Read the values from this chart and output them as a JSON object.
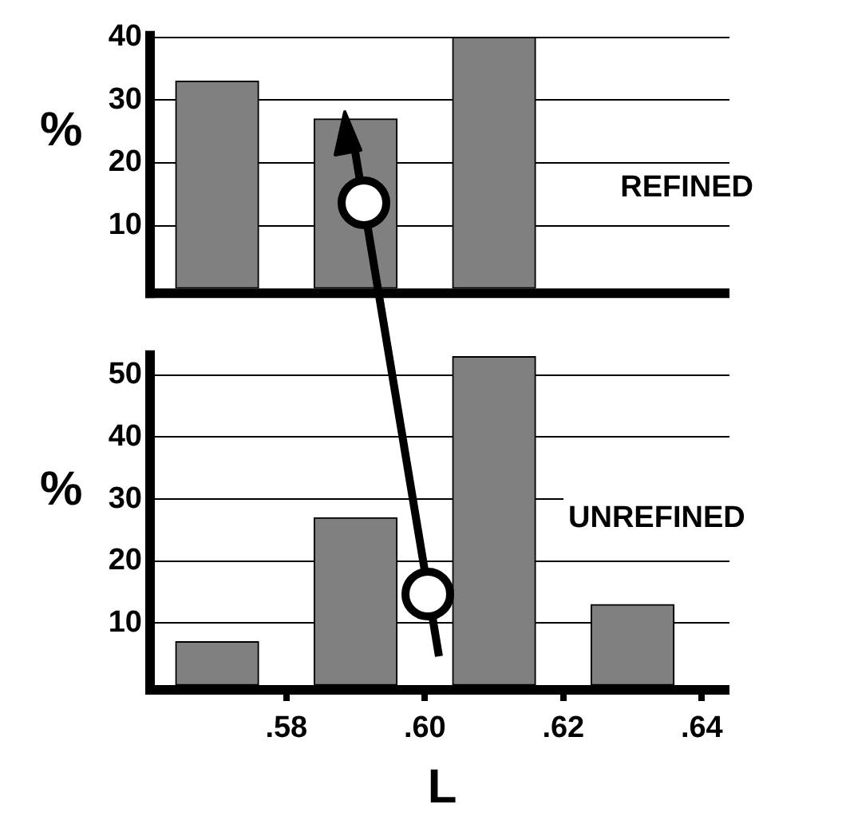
{
  "chart_data": [
    {
      "type": "bar",
      "x": [
        0.57,
        0.59,
        0.61
      ],
      "values": [
        33,
        27,
        40
      ],
      "color": "#808080",
      "xlim": [
        0.561,
        0.644
      ],
      "ylim": [
        0,
        41
      ],
      "yticks": [
        10,
        20,
        30,
        40
      ],
      "ylabel": "%",
      "annotations": [
        "REFINED"
      ],
      "grid": "y",
      "tick_labels": "y"
    },
    {
      "type": "bar",
      "x": [
        0.57,
        0.59,
        0.61,
        0.63
      ],
      "values": [
        7,
        27,
        53,
        13
      ],
      "color": "#808080",
      "xlim": [
        0.561,
        0.644
      ],
      "xticks": [
        {
          "value": 0.58,
          "label": ".58"
        },
        {
          "value": 0.6,
          "label": ".60"
        },
        {
          "value": 0.62,
          "label": ".62"
        },
        {
          "value": 0.64,
          "label": ".64"
        }
      ],
      "ylim": [
        0,
        54
      ],
      "yticks": [
        10,
        20,
        30,
        40,
        50
      ],
      "ylabel": "%",
      "xlabel": "L",
      "annotations": [
        "UNREFINED"
      ],
      "grid": "y"
    }
  ]
}
